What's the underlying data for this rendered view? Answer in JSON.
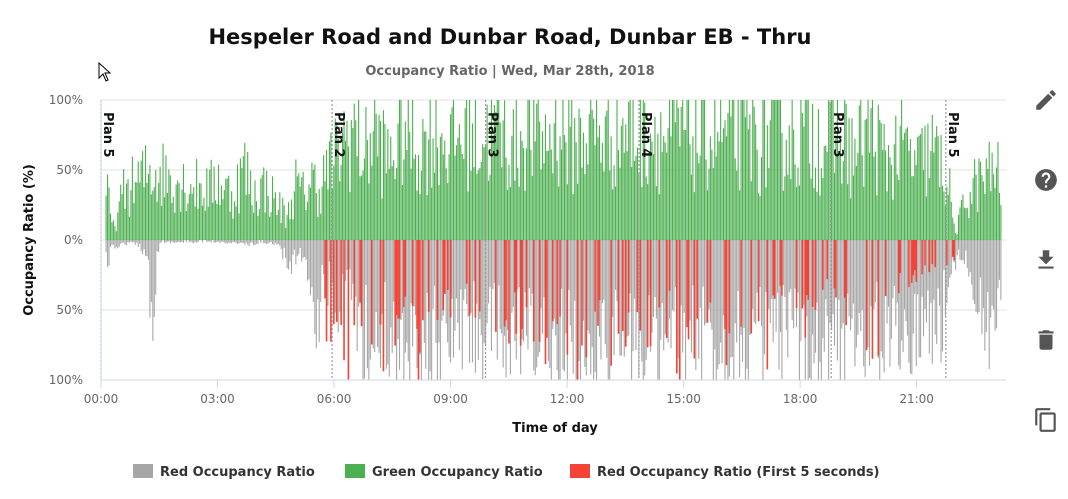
{
  "chart_data": {
    "type": "bar",
    "title": "Hespeler Road and Dunbar Road, Dunbar EB - Thru",
    "subtitle": "Occupancy Ratio | Wed, Mar 28th, 2018",
    "xlabel": "Time of day",
    "ylabel": "Occupancy Ratio (%)",
    "x_tick_labels": [
      "00:00",
      "03:00",
      "06:00",
      "09:00",
      "12:00",
      "15:00",
      "18:00",
      "21:00",
      "00:00"
    ],
    "x_range_hours": [
      0,
      23.3
    ],
    "y_tick_labels_top": [
      "100%",
      "50%",
      "0%"
    ],
    "y_tick_labels_bottom": [
      "50%",
      "100%"
    ],
    "ylim_upper": [
      0,
      100
    ],
    "ylim_lower": [
      0,
      100
    ],
    "grid": true,
    "legend_position": "bottom",
    "plans": [
      {
        "label": "Plan 5",
        "hour": 0.0
      },
      {
        "label": "Plan 2",
        "hour": 5.95
      },
      {
        "label": "Plan 3",
        "hour": 9.9
      },
      {
        "label": "Plan 4",
        "hour": 13.85
      },
      {
        "label": "Plan 3",
        "hour": 18.8
      },
      {
        "label": "Plan 5",
        "hour": 21.75
      }
    ],
    "series": [
      {
        "name": "Red Occupancy Ratio",
        "color": "#a6a6a6",
        "direction": "down",
        "points": [
          [
            0.1,
            22
          ],
          [
            0.35,
            6
          ],
          [
            0.6,
            3
          ],
          [
            0.9,
            3
          ],
          [
            1.0,
            5
          ],
          [
            1.2,
            15
          ],
          [
            1.3,
            70
          ],
          [
            1.5,
            2
          ],
          [
            2.0,
            2
          ],
          [
            2.5,
            2
          ],
          [
            3.2,
            2
          ],
          [
            3.6,
            3
          ],
          [
            3.9,
            5
          ],
          [
            4.1,
            2
          ],
          [
            4.5,
            3
          ],
          [
            4.9,
            25
          ],
          [
            5.1,
            8
          ],
          [
            5.25,
            20
          ],
          [
            5.4,
            35
          ],
          [
            5.5,
            55
          ],
          [
            5.6,
            82
          ],
          [
            5.7,
            18
          ],
          [
            5.8,
            40
          ],
          [
            6.2,
            60
          ],
          [
            6.4,
            35
          ],
          [
            6.6,
            70
          ],
          [
            6.8,
            85
          ],
          [
            7.0,
            95
          ],
          [
            7.3,
            80
          ],
          [
            7.6,
            92
          ],
          [
            8.0,
            88
          ],
          [
            8.4,
            95
          ],
          [
            8.8,
            90
          ],
          [
            9.2,
            82
          ],
          [
            9.6,
            78
          ],
          [
            10.0,
            85
          ],
          [
            10.4,
            90
          ],
          [
            10.8,
            86
          ],
          [
            11.2,
            92
          ],
          [
            11.6,
            88
          ],
          [
            12.0,
            94
          ],
          [
            12.4,
            89
          ],
          [
            12.8,
            90
          ],
          [
            13.2,
            87
          ],
          [
            13.6,
            95
          ],
          [
            14.0,
            85
          ],
          [
            14.4,
            92
          ],
          [
            14.8,
            88
          ],
          [
            15.2,
            90
          ],
          [
            15.6,
            86
          ],
          [
            16.0,
            93
          ],
          [
            16.4,
            88
          ],
          [
            16.8,
            91
          ],
          [
            17.2,
            87
          ],
          [
            17.6,
            92
          ],
          [
            18.0,
            86
          ],
          [
            18.4,
            90
          ],
          [
            18.8,
            82
          ],
          [
            19.2,
            88
          ],
          [
            19.6,
            80
          ],
          [
            20.0,
            85
          ],
          [
            20.4,
            75
          ],
          [
            20.8,
            82
          ],
          [
            21.2,
            70
          ],
          [
            21.6,
            80
          ],
          [
            21.9,
            20
          ],
          [
            22.2,
            12
          ],
          [
            22.4,
            30
          ],
          [
            22.6,
            50
          ],
          [
            22.8,
            92
          ],
          [
            23.0,
            75
          ],
          [
            23.2,
            40
          ]
        ]
      },
      {
        "name": "Green Occupancy Ratio",
        "color": "#4caf50",
        "direction": "up",
        "points": [
          [
            0.1,
            55
          ],
          [
            0.3,
            10
          ],
          [
            0.4,
            18
          ],
          [
            0.6,
            45
          ],
          [
            0.8,
            48
          ],
          [
            1.3,
            62
          ],
          [
            1.7,
            58
          ],
          [
            2.2,
            50
          ],
          [
            2.8,
            45
          ],
          [
            3.0,
            55
          ],
          [
            3.2,
            45
          ],
          [
            3.4,
            40
          ],
          [
            3.7,
            65
          ],
          [
            3.9,
            40
          ],
          [
            4.2,
            48
          ],
          [
            4.5,
            35
          ],
          [
            4.8,
            20
          ],
          [
            5.0,
            50
          ],
          [
            5.2,
            40
          ],
          [
            5.4,
            55
          ],
          [
            5.6,
            45
          ],
          [
            5.8,
            60
          ],
          [
            6.0,
            70
          ],
          [
            6.2,
            85
          ],
          [
            6.5,
            100
          ],
          [
            6.8,
            75
          ],
          [
            7.0,
            100
          ],
          [
            7.4,
            70
          ],
          [
            7.8,
            100
          ],
          [
            8.2,
            80
          ],
          [
            8.6,
            100
          ],
          [
            9.0,
            85
          ],
          [
            9.4,
            100
          ],
          [
            9.8,
            90
          ],
          [
            10.2,
            100
          ],
          [
            10.6,
            82
          ],
          [
            11.0,
            100
          ],
          [
            11.4,
            88
          ],
          [
            11.8,
            100
          ],
          [
            12.2,
            85
          ],
          [
            12.6,
            100
          ],
          [
            13.0,
            92
          ],
          [
            13.4,
            100
          ],
          [
            13.8,
            95
          ],
          [
            14.2,
            100
          ],
          [
            14.6,
            85
          ],
          [
            15.0,
            100
          ],
          [
            15.4,
            88
          ],
          [
            15.8,
            100
          ],
          [
            16.2,
            90
          ],
          [
            16.6,
            100
          ],
          [
            17.0,
            85
          ],
          [
            17.4,
            100
          ],
          [
            17.8,
            90
          ],
          [
            18.2,
            100
          ],
          [
            18.6,
            88
          ],
          [
            19.0,
            95
          ],
          [
            19.4,
            75
          ],
          [
            19.8,
            100
          ],
          [
            20.2,
            70
          ],
          [
            20.6,
            85
          ],
          [
            21.0,
            65
          ],
          [
            21.4,
            80
          ],
          [
            21.8,
            55
          ],
          [
            22.0,
            5
          ],
          [
            22.2,
            30
          ],
          [
            22.5,
            50
          ],
          [
            22.8,
            55
          ],
          [
            23.0,
            65
          ],
          [
            23.2,
            50
          ]
        ]
      },
      {
        "name": "Red Occupancy Ratio (First 5 seconds)",
        "color": "#f44336",
        "direction": "down",
        "points": [
          [
            5.6,
            8
          ],
          [
            5.8,
            60
          ],
          [
            6.1,
            92
          ],
          [
            6.4,
            100
          ],
          [
            6.6,
            50
          ],
          [
            7.0,
            65
          ],
          [
            7.4,
            100
          ],
          [
            7.8,
            40
          ],
          [
            8.2,
            100
          ],
          [
            8.5,
            70
          ],
          [
            9.4,
            45
          ],
          [
            9.8,
            55
          ],
          [
            10.2,
            100
          ],
          [
            10.6,
            60
          ],
          [
            11.0,
            70
          ],
          [
            11.4,
            100
          ],
          [
            11.8,
            55
          ],
          [
            12.2,
            100
          ],
          [
            12.6,
            60
          ],
          [
            13.0,
            75
          ],
          [
            13.4,
            100
          ],
          [
            13.8,
            45
          ],
          [
            14.2,
            100
          ],
          [
            14.6,
            55
          ],
          [
            15.0,
            100
          ],
          [
            15.4,
            60
          ],
          [
            15.8,
            70
          ],
          [
            16.2,
            100
          ],
          [
            16.6,
            55
          ],
          [
            17.0,
            100
          ],
          [
            17.4,
            45
          ],
          [
            17.8,
            80
          ],
          [
            18.2,
            60
          ],
          [
            18.6,
            30
          ],
          [
            19.1,
            50
          ],
          [
            19.5,
            70
          ],
          [
            19.9,
            100
          ],
          [
            20.2,
            55
          ],
          [
            20.6,
            35
          ],
          [
            21.0,
            25
          ],
          [
            22.4,
            15
          ],
          [
            22.7,
            35
          ],
          [
            22.9,
            18
          ]
        ]
      }
    ]
  },
  "toolbar": {
    "edit_icon": "pencil-icon",
    "help_icon": "help-circle-icon",
    "download_icon": "download-icon",
    "delete_icon": "trash-icon",
    "copy_icon": "copy-icon"
  }
}
